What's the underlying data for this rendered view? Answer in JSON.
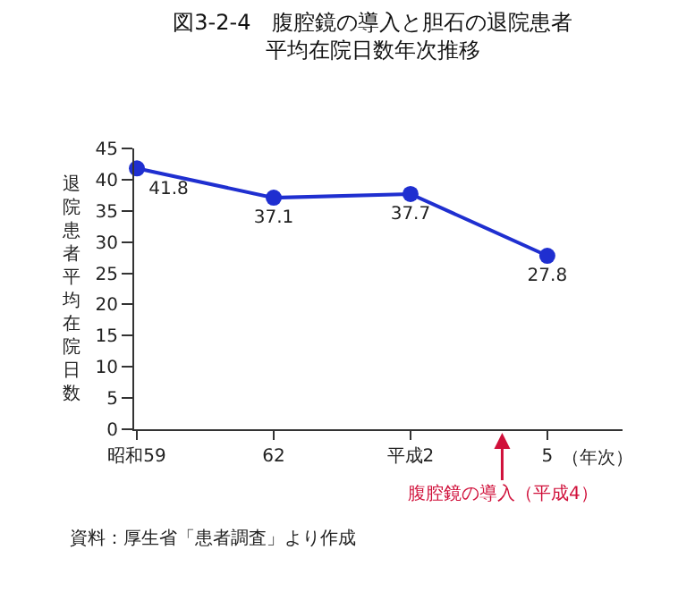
{
  "chart_data": {
    "type": "line",
    "title": "図3-2-4　腹腔鏡の導入と胆石の退院患者平均在院日数年次推移",
    "categories": [
      "昭和59",
      "62",
      "平成2",
      "5"
    ],
    "series": [
      {
        "color": "#1f2fd0",
        "values": [
          41.8,
          37.1,
          37.7,
          27.8
        ]
      }
    ],
    "xlabel": "（年次）",
    "ylabel": "退院患者平均在院日数",
    "ylim": [
      0,
      45
    ],
    "yticks": [
      0,
      5,
      10,
      15,
      20,
      25,
      30,
      35,
      40,
      45
    ],
    "marker": "circle",
    "line_style": "solid",
    "data_labels": true,
    "annotations": [
      "腹腔鏡の導入（平成4）",
      "資料：厚生省「患者調査」より作成"
    ]
  }
}
